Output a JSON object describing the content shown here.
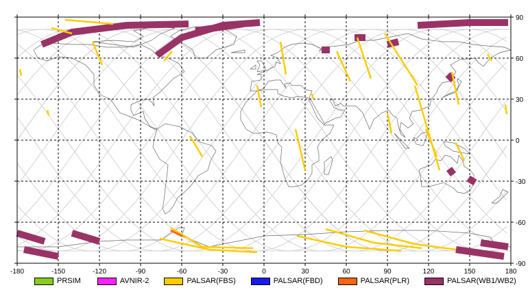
{
  "map": {
    "lon_ticks": [
      -180,
      -150,
      -120,
      -90,
      -60,
      -30,
      0,
      30,
      60,
      90,
      120,
      150,
      180
    ],
    "lat_ticks": [
      90,
      60,
      30,
      0,
      -30,
      -60,
      -90
    ],
    "lon_labels": [
      "-180",
      "-150",
      "-120",
      "-90",
      "-60",
      "-30",
      "0",
      "30",
      "60",
      "90",
      "120",
      "150",
      "180"
    ],
    "lat_labels": [
      "90",
      "60",
      "30",
      "0",
      "-30",
      "-60",
      "-90"
    ],
    "extent": {
      "lon": [
        -180,
        180
      ],
      "lat": [
        -90,
        90
      ]
    },
    "grid": "dashed"
  },
  "legend": [
    {
      "label": "PRSIM",
      "color": "#88cc22"
    },
    {
      "label": "AVNIR-2",
      "color": "#ff22ff"
    },
    {
      "label": "PALSAR(FBS)",
      "color": "#ffcc00"
    },
    {
      "label": "PALSAR(FBD)",
      "color": "#1a1aee"
    },
    {
      "label": "PALSAR(PLR)",
      "color": "#ff6611"
    },
    {
      "label": "PALSAR(WB1/WB2)",
      "color": "#993366"
    }
  ],
  "colors": {
    "coastline": "#666666",
    "orbit_track": "#c8c8c8",
    "grid": "#000000"
  },
  "swaths": {
    "fbs": [
      {
        "path": [
          [
            -145,
            88
          ],
          [
            -110,
            85
          ]
        ]
      },
      {
        "path": [
          [
            -155,
            82
          ],
          [
            -140,
            78
          ]
        ]
      },
      {
        "path": [
          [
            -73,
            58
          ],
          [
            -67,
            65
          ]
        ]
      },
      {
        "path": [
          [
            -125,
            72
          ],
          [
            -118,
            55
          ]
        ]
      },
      {
        "path": [
          [
            -178,
            52
          ],
          [
            -177,
            47
          ]
        ]
      },
      {
        "path": [
          [
            -158,
            22
          ],
          [
            -157,
            18
          ]
        ]
      },
      {
        "path": [
          [
            -54,
            3
          ],
          [
            -45,
            -12
          ]
        ]
      },
      {
        "path": [
          [
            -5,
            40
          ],
          [
            -2,
            24
          ]
        ]
      },
      {
        "path": [
          [
            12,
            72
          ],
          [
            16,
            48
          ]
        ]
      },
      {
        "path": [
          [
            23,
            8
          ],
          [
            30,
            -22
          ]
        ]
      },
      {
        "path": [
          [
            35,
            34
          ],
          [
            36,
            30
          ]
        ]
      },
      {
        "path": [
          [
            53,
            65
          ],
          [
            63,
            43
          ]
        ]
      },
      {
        "path": [
          [
            68,
            75
          ],
          [
            78,
            45
          ]
        ]
      },
      {
        "path": [
          [
            88,
            78
          ],
          [
            112,
            40
          ]
        ]
      },
      {
        "path": [
          [
            90,
            20
          ],
          [
            93,
            5
          ]
        ]
      },
      {
        "path": [
          [
            110,
            40
          ],
          [
            128,
            -22
          ]
        ]
      },
      {
        "path": [
          [
            118,
            8
          ],
          [
            126,
            -12
          ]
        ]
      },
      {
        "path": [
          [
            137,
            50
          ],
          [
            142,
            26
          ]
        ]
      },
      {
        "path": [
          [
            140,
            -2
          ],
          [
            146,
            -15
          ]
        ]
      },
      {
        "path": [
          [
            163,
            63
          ],
          [
            166,
            58
          ]
        ]
      },
      {
        "path": [
          [
            176,
            26
          ],
          [
            177,
            19
          ]
        ]
      },
      {
        "path": [
          [
            -68,
            -64
          ],
          [
            -45,
            -78
          ],
          [
            -8,
            -79
          ]
        ]
      },
      {
        "path": [
          [
            -76,
            -72
          ],
          [
            -40,
            -80
          ],
          [
            -5,
            -82
          ]
        ]
      },
      {
        "path": [
          [
            24,
            -70
          ],
          [
            60,
            -78
          ],
          [
            100,
            -81
          ]
        ]
      },
      {
        "path": [
          [
            45,
            -65
          ],
          [
            80,
            -75
          ],
          [
            115,
            -79
          ]
        ]
      },
      {
        "path": [
          [
            73,
            -66
          ],
          [
            110,
            -76
          ],
          [
            140,
            -80
          ]
        ]
      }
    ],
    "wb": [
      {
        "path": [
          [
            -162,
            70
          ],
          [
            -140,
            79
          ],
          [
            -100,
            84
          ],
          [
            -55,
            85
          ]
        ]
      },
      {
        "path": [
          [
            -78,
            62
          ],
          [
            -60,
            75
          ],
          [
            -30,
            84
          ],
          [
            -3,
            86
          ]
        ]
      },
      {
        "path": [
          [
            -50,
            80
          ],
          [
            -15,
            85
          ]
        ]
      },
      {
        "path": [
          [
            112,
            84
          ],
          [
            150,
            86
          ],
          [
            178,
            86
          ]
        ]
      },
      {
        "path": [
          [
            42,
            66
          ],
          [
            48,
            66
          ]
        ]
      },
      {
        "path": [
          [
            66,
            75
          ],
          [
            74,
            75
          ]
        ]
      },
      {
        "path": [
          [
            90,
            70
          ],
          [
            98,
            72
          ]
        ]
      },
      {
        "path": [
          [
            134,
            48
          ],
          [
            138,
            44
          ]
        ]
      },
      {
        "path": [
          [
            135,
            -21
          ],
          [
            138,
            -25
          ]
        ]
      },
      {
        "path": [
          [
            149,
            -28
          ],
          [
            154,
            -31
          ]
        ]
      },
      {
        "path": [
          [
            -180,
            -68
          ],
          [
            -160,
            -74
          ]
        ]
      },
      {
        "path": [
          [
            -175,
            -80
          ],
          [
            -150,
            -85
          ]
        ]
      },
      {
        "path": [
          [
            -140,
            -68
          ],
          [
            -120,
            -74
          ]
        ]
      },
      {
        "path": [
          [
            158,
            -75
          ],
          [
            178,
            -78
          ]
        ]
      },
      {
        "path": [
          [
            140,
            -80
          ],
          [
            175,
            -85
          ]
        ]
      }
    ],
    "plr": [
      {
        "path": [
          [
            -68,
            -66
          ],
          [
            -60,
            -70
          ]
        ]
      }
    ]
  }
}
